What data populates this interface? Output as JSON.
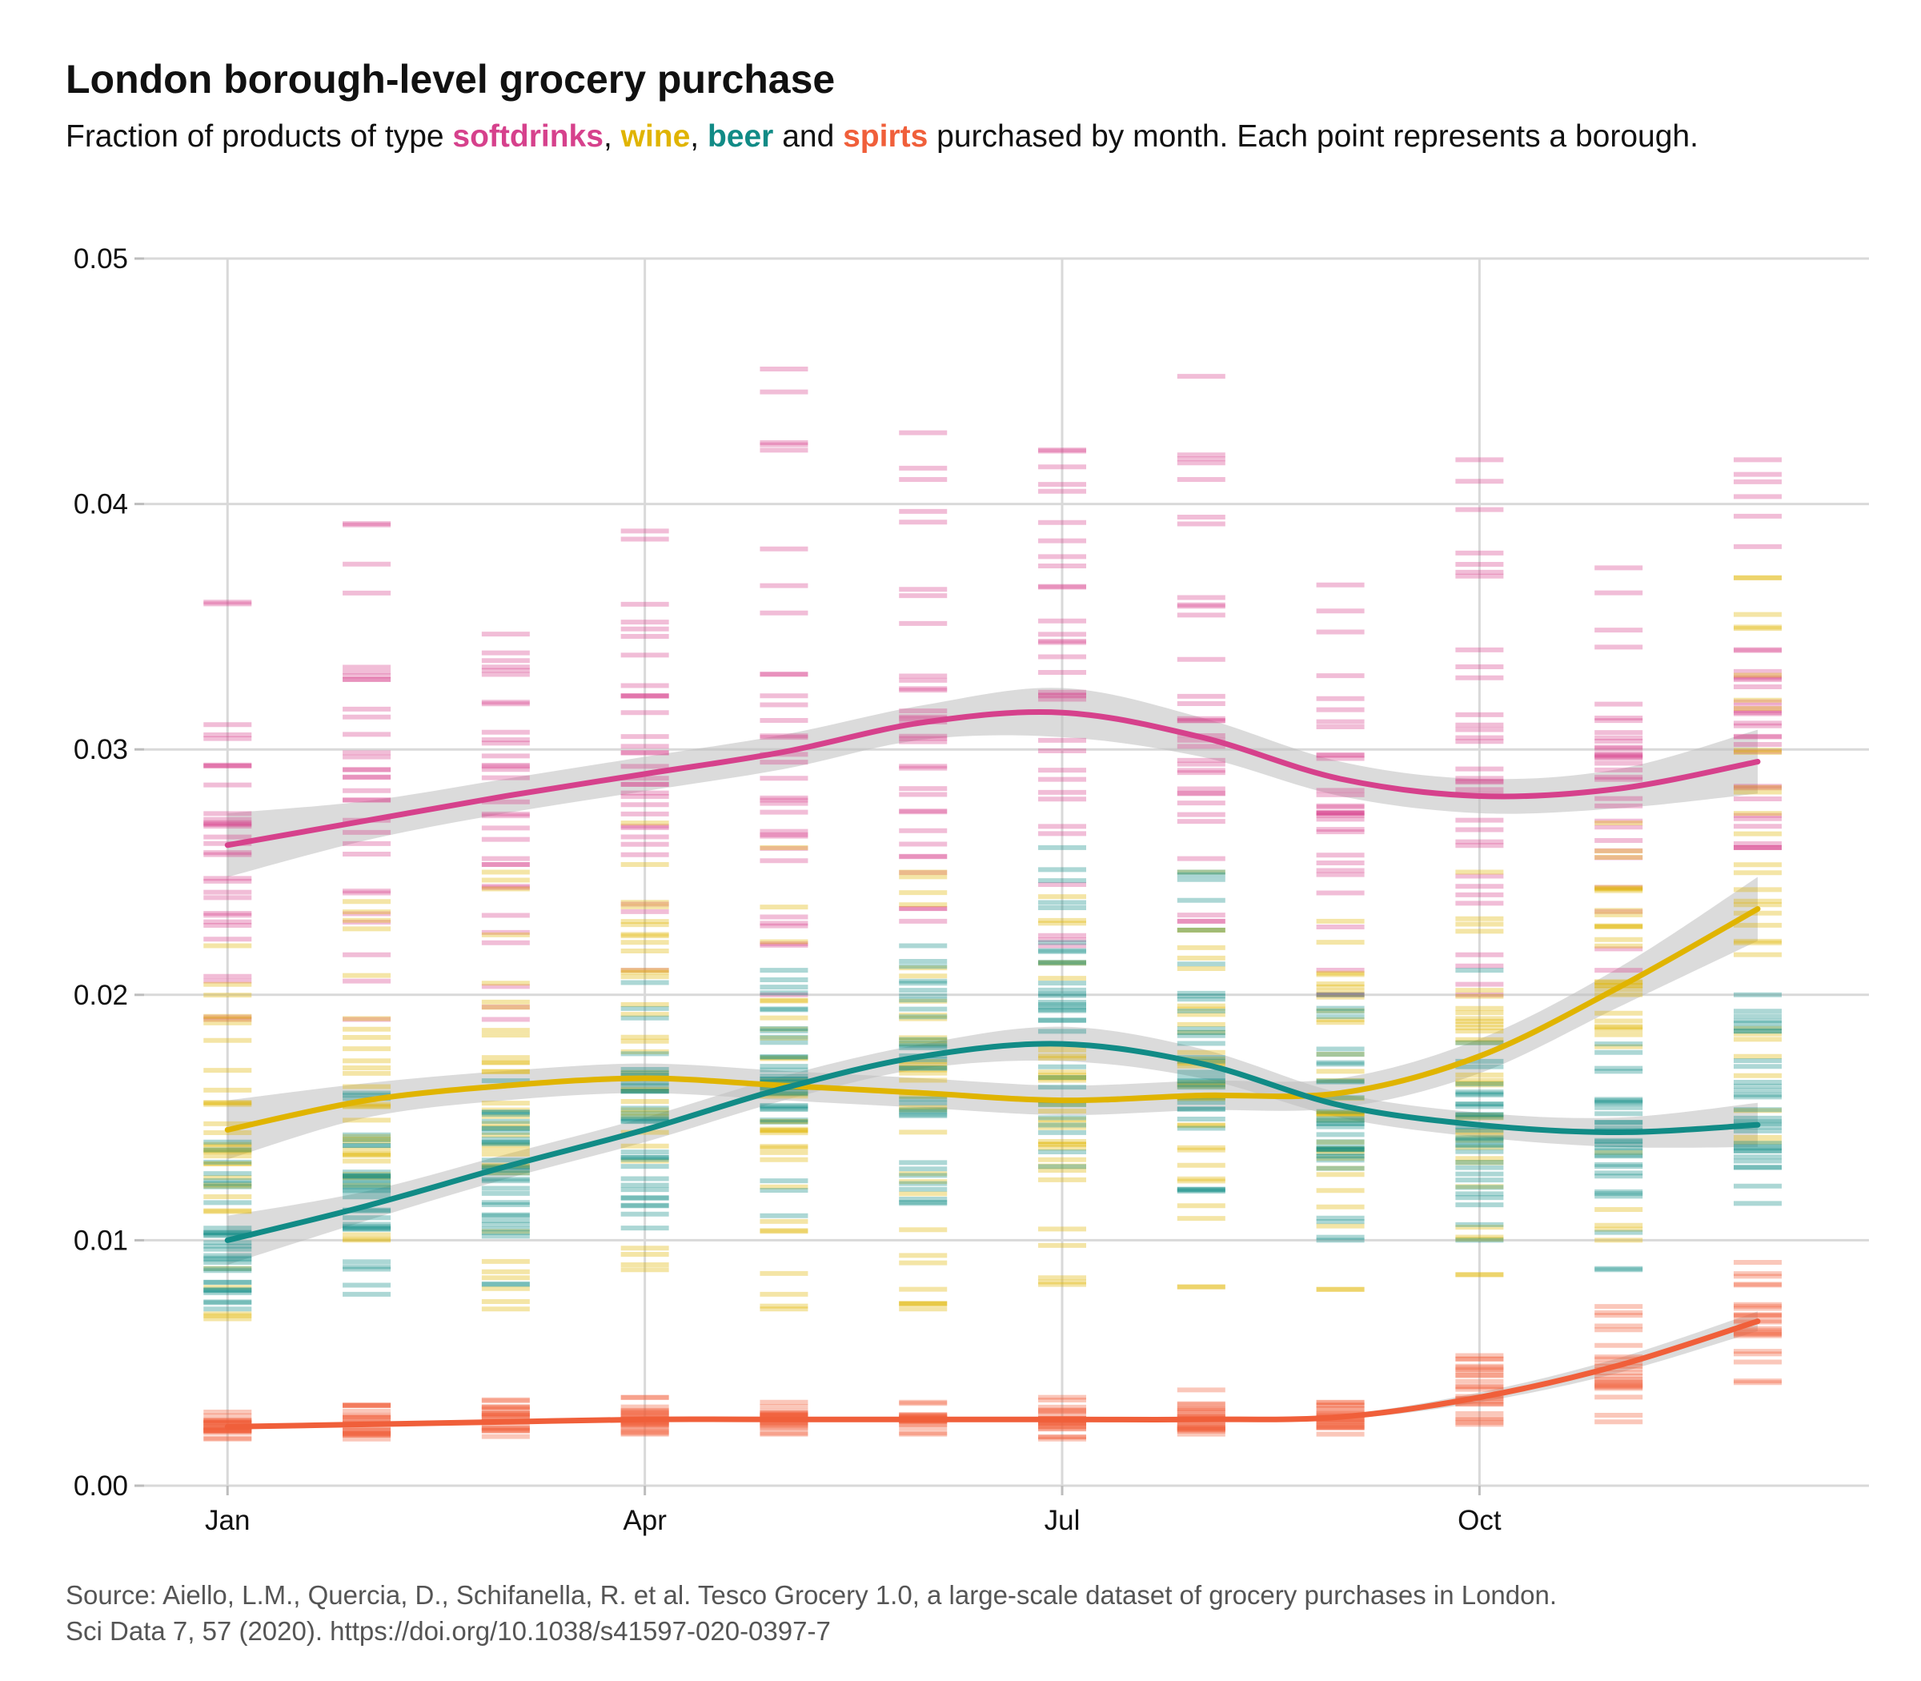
{
  "title": "London borough-level grocery purchase",
  "subtitle": {
    "prefix": "Fraction of products of type ",
    "sep1": ", ",
    "sep2": ", ",
    "sep3": " and ",
    "suffix": " purchased by month. Each point represents a borough.",
    "keywords": [
      "softdrinks",
      "wine",
      "beer",
      "spirts"
    ]
  },
  "caption": {
    "line1": "Source: Aiello, L.M., Quercia, D., Schifanella, R. et al. Tesco Grocery 1.0, a large-scale dataset of grocery purchases in London.",
    "line2": "Sci Data 7, 57 (2020). https://doi.org/10.1038/s41597-020-0397-7"
  },
  "colors": {
    "softdrinks": "#d6418c",
    "wine": "#e0b400",
    "beer": "#118b86",
    "spirts": "#f05f3a",
    "band": "#bdbdbd",
    "grid": "#d9d9d9"
  },
  "chart_data": {
    "type": "scatter",
    "mark": "horizontal dash per borough, with smoothed trend line and confidence band per series",
    "x": [
      1,
      2,
      3,
      4,
      5,
      6,
      7,
      8,
      9,
      10,
      11,
      12
    ],
    "x_ticks": [
      {
        "value": 1,
        "label": "Jan"
      },
      {
        "value": 4,
        "label": "Apr"
      },
      {
        "value": 7,
        "label": "Jul"
      },
      {
        "value": 10,
        "label": "Oct"
      }
    ],
    "y_ticks": [
      "0.00",
      "0.01",
      "0.02",
      "0.03",
      "0.04",
      "0.05"
    ],
    "ylim": [
      0,
      0.05
    ],
    "xlim": [
      0.4,
      12.8
    ],
    "grid": true,
    "legend": "none",
    "series": [
      {
        "key": "softdrinks",
        "trend": [
          0.0261,
          0.0271,
          0.0281,
          0.029,
          0.0299,
          0.0311,
          0.0315,
          0.0305,
          0.0288,
          0.0281,
          0.0284,
          0.0295
        ],
        "band_halfwidth": [
          0.0013,
          0.0008,
          0.0007,
          0.0007,
          0.0007,
          0.0007,
          0.001,
          0.0008,
          0.0007,
          0.0007,
          0.0008,
          0.0013
        ],
        "points_min": [
          0.019,
          0.019,
          0.019,
          0.021,
          0.02,
          0.023,
          0.022,
          0.023,
          0.02,
          0.02,
          0.021,
          0.026
        ],
        "points_max": [
          0.036,
          0.0392,
          0.0347,
          0.0389,
          0.0455,
          0.0429,
          0.0422,
          0.0452,
          0.0367,
          0.0418,
          0.0374,
          0.0418
        ],
        "outliers": [
          [
            5,
            0.0425
          ],
          [
            8,
            0.042
          ],
          [
            8,
            0.041
          ],
          [
            6,
            0.041
          ],
          [
            7,
            0.0408
          ],
          [
            10,
            0.038
          ],
          [
            12,
            0.0403
          ],
          [
            12,
            0.0395
          ]
        ]
      },
      {
        "key": "wine",
        "trend": [
          0.0145,
          0.0157,
          0.0163,
          0.0166,
          0.0163,
          0.016,
          0.0157,
          0.0159,
          0.016,
          0.0175,
          0.0203,
          0.0235
        ],
        "band_halfwidth": [
          0.0012,
          0.0007,
          0.0006,
          0.0006,
          0.0006,
          0.0006,
          0.0006,
          0.0006,
          0.0006,
          0.0007,
          0.0008,
          0.0013
        ],
        "points_min": [
          0.0068,
          0.01,
          0.0072,
          0.009,
          0.0072,
          0.0072,
          0.0082,
          0.0081,
          0.008,
          0.0086,
          0.01,
          0.014
        ],
        "points_max": [
          0.022,
          0.0238,
          0.025,
          0.027,
          0.026,
          0.025,
          0.024,
          0.025,
          0.023,
          0.025,
          0.027,
          0.037
        ],
        "outliers": [
          [
            1,
            0.007
          ],
          [
            3,
            0.0075
          ],
          [
            4,
            0.0088
          ],
          [
            5,
            0.0078
          ],
          [
            6,
            0.0074
          ],
          [
            7,
            0.0083
          ],
          [
            8,
            0.0081
          ],
          [
            9,
            0.008
          ],
          [
            10,
            0.0086
          ]
        ]
      },
      {
        "key": "beer",
        "trend": [
          0.01,
          0.0114,
          0.013,
          0.0145,
          0.0162,
          0.0175,
          0.018,
          0.0172,
          0.0155,
          0.0147,
          0.0144,
          0.0147
        ],
        "band_halfwidth": [
          0.001,
          0.0006,
          0.0005,
          0.0005,
          0.0005,
          0.0005,
          0.0007,
          0.0006,
          0.0005,
          0.0005,
          0.0006,
          0.0009
        ],
        "points_min": [
          0.0072,
          0.0078,
          0.0082,
          0.0105,
          0.011,
          0.0115,
          0.013,
          0.012,
          0.01,
          0.01,
          0.0088,
          0.0115
        ],
        "points_max": [
          0.014,
          0.016,
          0.0165,
          0.0205,
          0.021,
          0.022,
          0.026,
          0.025,
          0.02,
          0.021,
          0.018,
          0.02
        ],
        "outliers": []
      },
      {
        "key": "spirts",
        "trend": [
          0.0024,
          0.0025,
          0.0026,
          0.0027,
          0.0027,
          0.0027,
          0.0027,
          0.0027,
          0.0028,
          0.0036,
          0.0049,
          0.0067
        ],
        "band_halfwidth": [
          0.0001,
          0.0001,
          0.0001,
          0.0001,
          0.0001,
          0.0001,
          0.0001,
          0.0001,
          0.0001,
          0.0002,
          0.0003,
          0.0004
        ],
        "points_min": [
          0.0019,
          0.0019,
          0.002,
          0.0021,
          0.0021,
          0.0021,
          0.0019,
          0.0021,
          0.0021,
          0.0025,
          0.0026,
          0.0042
        ],
        "points_max": [
          0.003,
          0.0033,
          0.0035,
          0.0036,
          0.0034,
          0.0034,
          0.0036,
          0.0039,
          0.0034,
          0.0053,
          0.0073,
          0.0091
        ],
        "outliers": []
      }
    ]
  }
}
